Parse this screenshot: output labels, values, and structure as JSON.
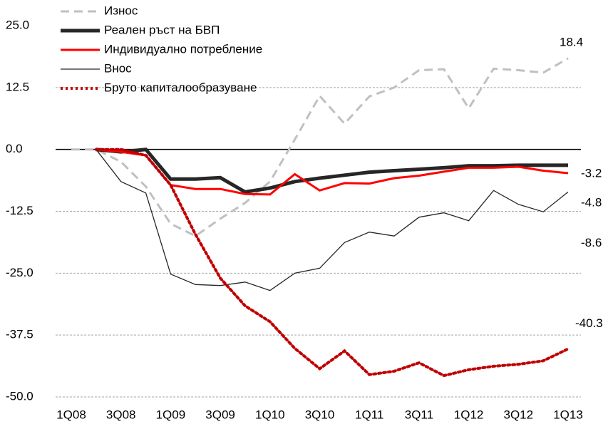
{
  "chart_data": {
    "type": "line",
    "categories": [
      "1Q08",
      null,
      "3Q08",
      null,
      "1Q09",
      null,
      "3Q09",
      null,
      "1Q10",
      null,
      "3Q10",
      null,
      "1Q11",
      null,
      "3Q11",
      null,
      "1Q12",
      null,
      "3Q12",
      null,
      "1Q13"
    ],
    "series": [
      {
        "name": "Износ",
        "color": "#c0c0c0",
        "style": "dashed",
        "width": 3,
        "values": [
          0,
          0,
          -2.5,
          -7.5,
          -15,
          -17.5,
          -14,
          -10.8,
          -6.5,
          2,
          10.8,
          5.2,
          10.7,
          12.5,
          16,
          16.2,
          8.3,
          16.3,
          16,
          15.5,
          18.4
        ]
      },
      {
        "name": "Реален ръст на БВП",
        "color": "#262626",
        "style": "solid",
        "width": 5,
        "values": [
          null,
          0,
          -0.5,
          0,
          -6,
          -6,
          -5.7,
          -8.6,
          -7.8,
          -6.5,
          -5.8,
          -5.2,
          -4.6,
          -4.3,
          -4,
          -3.7,
          -3.3,
          -3.3,
          -3.2,
          -3.2,
          -3.2
        ]
      },
      {
        "name": "Индивидуално потребление",
        "color": "#ff0000",
        "style": "solid",
        "width": 3,
        "values": [
          null,
          0,
          -0.5,
          -1.2,
          -7.2,
          -8,
          -8,
          -9,
          -9.1,
          -5,
          -8.3,
          -6.8,
          -6.9,
          -5.8,
          -5.3,
          -4.5,
          -3.7,
          -3.7,
          -3.5,
          -4.3,
          -4.8
        ]
      },
      {
        "name": "Внос",
        "color": "#262626",
        "style": "solid",
        "width": 1.3,
        "values": [
          null,
          0,
          -6.5,
          -8.8,
          -25.2,
          -27.3,
          -27.5,
          -26.8,
          -28.5,
          -25,
          -24,
          -18.8,
          -16.7,
          -17.5,
          -13.7,
          -12.8,
          -14.4,
          -8.3,
          -11.1,
          -12.6,
          -8.6
        ]
      },
      {
        "name": "Бруто капиталообразуване",
        "color": "#c00000",
        "style": "dotted",
        "width": 4,
        "values": [
          null,
          0,
          0,
          -1.2,
          -7.2,
          -17.2,
          -26,
          -31.6,
          -34.8,
          -40.2,
          -44.3,
          -40.7,
          -45.5,
          -44.8,
          -43.1,
          -45.7,
          -44.5,
          -43.8,
          -43.4,
          -42.7,
          -40.3
        ]
      }
    ],
    "ylim": [
      -50,
      25
    ],
    "yticks": [
      {
        "value": 25,
        "label": "25.0"
      },
      {
        "value": 12.5,
        "label": "12.5"
      },
      {
        "value": 0,
        "label": "0.0"
      },
      {
        "value": -12.5,
        "label": "-12.5"
      },
      {
        "value": -25,
        "label": "-25.0"
      },
      {
        "value": -37.5,
        "label": "-37.5"
      },
      {
        "value": -50,
        "label": "-50.0"
      }
    ],
    "grid": true
  }
}
